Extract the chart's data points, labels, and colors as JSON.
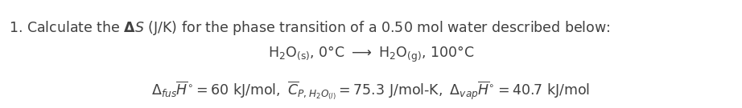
{
  "background_color": "#ffffff",
  "figsize": [
    9.22,
    1.35
  ],
  "dpi": 100,
  "text_color": "#404040",
  "fontsize": 12.5
}
